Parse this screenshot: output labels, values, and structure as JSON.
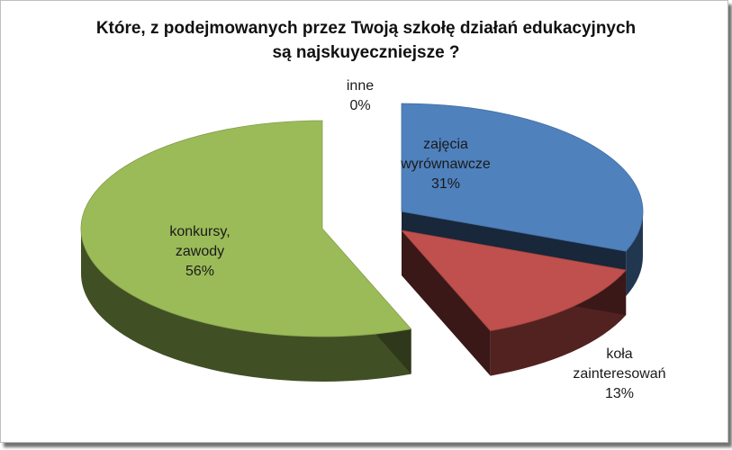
{
  "chart_data": {
    "type": "pie",
    "title_lines": [
      "Które, z podejmowanych przez Twoją szkołę działań edukacyjnych",
      "są najskuyeczniejsze ?"
    ],
    "slices": [
      {
        "label_lines": [
          "zajęcia",
          "wyrównawcze",
          "31%"
        ],
        "value": 31,
        "color": "#4f81bd"
      },
      {
        "label_lines": [
          "koła",
          "zainteresowań",
          "13%"
        ],
        "value": 13,
        "color": "#c0504d"
      },
      {
        "label_lines": [
          "konkursy,",
          "zawody",
          "56%"
        ],
        "value": 56,
        "color": "#9bbb59"
      },
      {
        "label_lines": [
          "inne",
          "0%"
        ],
        "value": 0,
        "color": "#8064a2"
      }
    ],
    "legend": "none",
    "style": "3d-exploded"
  }
}
